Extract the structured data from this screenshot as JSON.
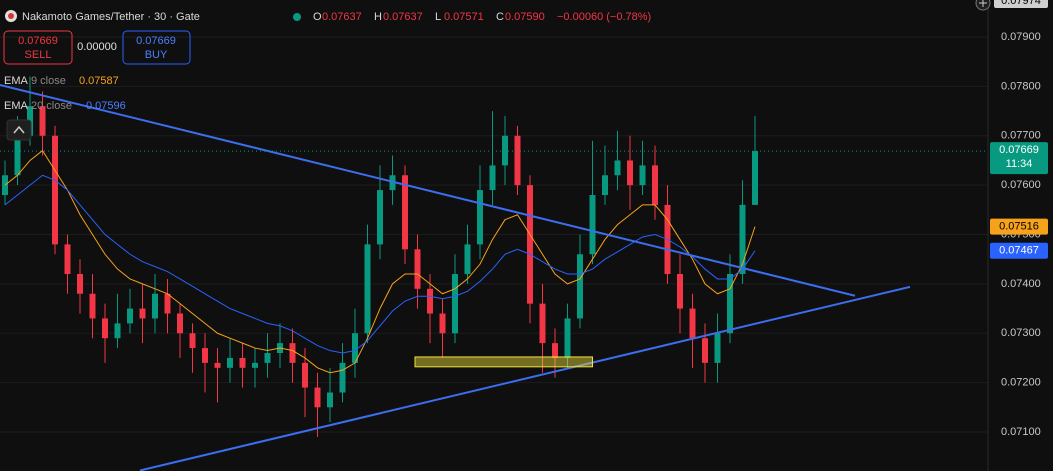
{
  "chart_data": {
    "type": "candlestick",
    "title": "Nakamoto Games/Tether · 30 · Gate",
    "ohlc_legend": [
      {
        "key": "O",
        "value": "0.07637"
      },
      {
        "key": "H",
        "value": "0.07637"
      },
      {
        "key": "L",
        "value": "0.07571"
      },
      {
        "key": "C",
        "value": "0.07590"
      }
    ],
    "change": "−0.00060 (−0.78%)",
    "sell": {
      "price": "0.07669",
      "label": "SELL"
    },
    "spread": "0.00000",
    "buy": {
      "price": "0.07669",
      "label": "BUY"
    },
    "open": [
      0.0758,
      0.0762,
      0.077,
      0.0776,
      0.077,
      0.0748,
      0.0742,
      0.0738,
      0.0733,
      0.0729,
      0.0732,
      0.0735,
      0.0733,
      0.0738,
      0.0734,
      0.073,
      0.0727,
      0.0724,
      0.0723,
      0.0725,
      0.0723,
      0.0724,
      0.0726,
      0.0728,
      0.0724,
      0.0719,
      0.0715,
      0.0718,
      0.0724,
      0.073,
      0.0748,
      0.0759,
      0.0762,
      0.0747,
      0.0739,
      0.0734,
      0.073,
      0.0742,
      0.0748,
      0.0759,
      0.0764,
      0.077,
      0.076,
      0.0736,
      0.0728,
      0.0725,
      0.0733,
      0.0746,
      0.0758,
      0.0762,
      0.0765,
      0.076,
      0.0764,
      0.0756,
      0.0742,
      0.0735,
      0.0729,
      0.0724,
      0.073,
      0.0742,
      0.0756
    ],
    "high": [
      0.0765,
      0.0774,
      0.0782,
      0.0779,
      0.0772,
      0.075,
      0.0745,
      0.0742,
      0.0736,
      0.0738,
      0.0739,
      0.074,
      0.0742,
      0.0741,
      0.0736,
      0.0732,
      0.073,
      0.0727,
      0.0729,
      0.0728,
      0.0727,
      0.073,
      0.0732,
      0.0731,
      0.0727,
      0.0722,
      0.0723,
      0.0728,
      0.0735,
      0.0752,
      0.0764,
      0.0766,
      0.0764,
      0.075,
      0.0742,
      0.0737,
      0.0746,
      0.0752,
      0.0764,
      0.0775,
      0.0774,
      0.0772,
      0.0762,
      0.074,
      0.0731,
      0.0736,
      0.075,
      0.0769,
      0.0768,
      0.0771,
      0.077,
      0.0769,
      0.0768,
      0.076,
      0.0746,
      0.0738,
      0.0732,
      0.0734,
      0.0746,
      0.0761,
      0.0774
    ],
    "low": [
      0.0756,
      0.076,
      0.0768,
      0.0766,
      0.0746,
      0.0738,
      0.0734,
      0.0729,
      0.0724,
      0.0727,
      0.073,
      0.0728,
      0.073,
      0.073,
      0.0725,
      0.0722,
      0.0718,
      0.0716,
      0.072,
      0.0719,
      0.0719,
      0.0721,
      0.0723,
      0.072,
      0.0713,
      0.0709,
      0.0712,
      0.0716,
      0.0721,
      0.0728,
      0.0745,
      0.0756,
      0.0744,
      0.0735,
      0.0728,
      0.0725,
      0.0728,
      0.074,
      0.0745,
      0.0756,
      0.076,
      0.0758,
      0.0732,
      0.0722,
      0.0721,
      0.0723,
      0.0731,
      0.0744,
      0.0756,
      0.0759,
      0.0755,
      0.0758,
      0.0753,
      0.074,
      0.073,
      0.0723,
      0.072,
      0.072,
      0.0728,
      0.074,
      0.0756
    ],
    "close": [
      0.0762,
      0.077,
      0.0776,
      0.077,
      0.0748,
      0.0742,
      0.0738,
      0.0733,
      0.0729,
      0.0732,
      0.0735,
      0.0733,
      0.0738,
      0.0734,
      0.073,
      0.0727,
      0.0724,
      0.0723,
      0.0725,
      0.0723,
      0.0724,
      0.0726,
      0.0728,
      0.0724,
      0.0719,
      0.0715,
      0.0718,
      0.0724,
      0.073,
      0.0748,
      0.0759,
      0.0762,
      0.0747,
      0.0739,
      0.0734,
      0.073,
      0.0742,
      0.0748,
      0.0759,
      0.0764,
      0.077,
      0.076,
      0.0736,
      0.0728,
      0.0725,
      0.0733,
      0.0746,
      0.0758,
      0.0762,
      0.0765,
      0.076,
      0.0764,
      0.0756,
      0.0742,
      0.0735,
      0.0729,
      0.0724,
      0.073,
      0.0742,
      0.0756,
      0.07669
    ],
    "up_color": "#089981",
    "down_color": "#f23645",
    "series": [
      {
        "name": "EMA",
        "period": "9 close",
        "legend_value": "0.07587",
        "color": "#f7a21b",
        "last_label": "0.07516",
        "values": [
          0.076,
          0.0762,
          0.0765,
          0.0767,
          0.0763,
          0.0759,
          0.0754,
          0.075,
          0.0746,
          0.0743,
          0.0741,
          0.074,
          0.0739,
          0.0738,
          0.0736,
          0.0734,
          0.0732,
          0.073,
          0.0729,
          0.0728,
          0.0727,
          0.07265,
          0.0727,
          0.07265,
          0.0725,
          0.0723,
          0.0722,
          0.07225,
          0.0724,
          0.0729,
          0.0735,
          0.074,
          0.0742,
          0.0742,
          0.074,
          0.0738,
          0.0739,
          0.0741,
          0.0744,
          0.0749,
          0.0753,
          0.0754,
          0.075,
          0.0746,
          0.0742,
          0.074,
          0.0741,
          0.0745,
          0.0749,
          0.0752,
          0.0754,
          0.0756,
          0.0756,
          0.0753,
          0.0749,
          0.0745,
          0.074,
          0.0738,
          0.0739,
          0.0744,
          0.07516
        ]
      },
      {
        "name": "EMA",
        "period": "20 close",
        "legend_value": "0.07596",
        "color": "#2962ff",
        "last_label": "0.07467",
        "values": [
          0.0756,
          0.0758,
          0.076,
          0.0762,
          0.0761,
          0.0759,
          0.0756,
          0.0753,
          0.075,
          0.0748,
          0.0746,
          0.07445,
          0.07435,
          0.07425,
          0.0741,
          0.07395,
          0.0738,
          0.07365,
          0.0735,
          0.0734,
          0.0733,
          0.0732,
          0.07315,
          0.07305,
          0.0729,
          0.07275,
          0.07265,
          0.0726,
          0.07265,
          0.07285,
          0.07315,
          0.07345,
          0.07365,
          0.07375,
          0.07375,
          0.0737,
          0.07375,
          0.07385,
          0.07405,
          0.0743,
          0.0746,
          0.0747,
          0.0746,
          0.07445,
          0.0743,
          0.0742,
          0.0742,
          0.0743,
          0.0745,
          0.07465,
          0.0748,
          0.07495,
          0.075,
          0.0749,
          0.07475,
          0.07455,
          0.0743,
          0.0741,
          0.0741,
          0.0743,
          0.07467
        ]
      }
    ],
    "last_price_label": "0.07669",
    "countdown": "11:34",
    "axis_top_label": "0.07974",
    "trendlines": [
      {
        "x": [
          -0.4,
          68
        ],
        "y": [
          0.07803,
          0.07376
        ],
        "color": "#3d6ef0"
      },
      {
        "x": [
          10.8,
          72.4
        ],
        "y": [
          0.07022,
          0.07394
        ],
        "color": "#3d6ef0"
      }
    ],
    "zone": {
      "x": [
        32.8,
        47
      ],
      "y": [
        0.07232,
        0.07252
      ],
      "color": "#f2e33a"
    },
    "ylim": [
      0.07021,
      0.07975
    ],
    "yticks": [
      {
        "value": 0.071,
        "label": "0.07100"
      },
      {
        "value": 0.072,
        "label": "0.07200"
      },
      {
        "value": 0.073,
        "label": "0.07300"
      },
      {
        "value": 0.074,
        "label": "0.07400"
      },
      {
        "value": 0.075,
        "label": "0.07500"
      },
      {
        "value": 0.076,
        "label": "0.07600"
      },
      {
        "value": 0.077,
        "label": "0.07700"
      },
      {
        "value": 0.078,
        "label": "0.07800"
      },
      {
        "value": 0.079,
        "label": "0.07900"
      }
    ],
    "grid": true
  }
}
